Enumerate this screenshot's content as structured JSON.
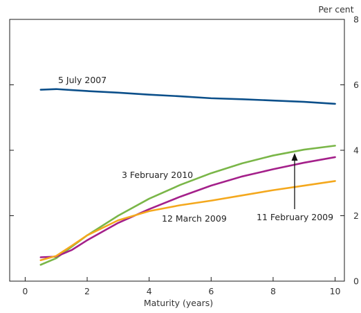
{
  "chart_data": {
    "type": "line",
    "title": "",
    "xlabel": "Maturity (years)",
    "ylabel": "Per cent",
    "xlim": [
      -0.5,
      10.3
    ],
    "ylim": [
      0,
      8
    ],
    "x_ticks": [
      0,
      2,
      4,
      6,
      8,
      10
    ],
    "y_ticks": [
      0,
      2,
      4,
      6,
      8
    ],
    "x_tick_labels": [
      "0",
      "2",
      "4",
      "6",
      "8",
      "10"
    ],
    "y_tick_labels": [
      "0",
      "2",
      "4",
      "6",
      "8"
    ],
    "grid": false,
    "legend": "none",
    "series": [
      {
        "name": "5 July 2007",
        "color": "#0b4f8a",
        "x": [
          0.5,
          1,
          1.5,
          2,
          3,
          4,
          5,
          6,
          7,
          8,
          9,
          10
        ],
        "y": [
          5.85,
          5.87,
          5.84,
          5.81,
          5.76,
          5.7,
          5.65,
          5.59,
          5.56,
          5.52,
          5.48,
          5.42
        ]
      },
      {
        "name": "3 February 2010",
        "color": "#7ab648",
        "x": [
          0.5,
          1,
          1.5,
          2,
          3,
          4,
          5,
          6,
          7,
          8,
          9,
          10
        ],
        "y": [
          0.5,
          0.7,
          1.05,
          1.4,
          2.0,
          2.52,
          2.94,
          3.3,
          3.6,
          3.84,
          4.02,
          4.14
        ]
      },
      {
        "name": "11 February 2009",
        "color": "#a4208a",
        "x": [
          0.5,
          1,
          1.5,
          2,
          3,
          4,
          5,
          6,
          7,
          8,
          9,
          10
        ],
        "y": [
          0.73,
          0.75,
          0.95,
          1.25,
          1.78,
          2.2,
          2.58,
          2.92,
          3.2,
          3.42,
          3.62,
          3.79
        ]
      },
      {
        "name": "12 March 2009",
        "color": "#f4a81d",
        "x": [
          0.5,
          1,
          1.5,
          2,
          3,
          4,
          5,
          6,
          7,
          8,
          9,
          10
        ],
        "y": [
          0.64,
          0.77,
          1.08,
          1.4,
          1.86,
          2.14,
          2.32,
          2.46,
          2.62,
          2.78,
          2.92,
          3.06
        ]
      }
    ],
    "annotations": [
      {
        "text": "5 July 2007",
        "series": "5 July 2007"
      },
      {
        "text": "3 February 2010",
        "series": "3 February 2010"
      },
      {
        "text": "12 March 2009",
        "series": "12 March 2009"
      },
      {
        "text": "11 February 2009",
        "series": "11 February 2009",
        "arrow": true
      }
    ]
  }
}
